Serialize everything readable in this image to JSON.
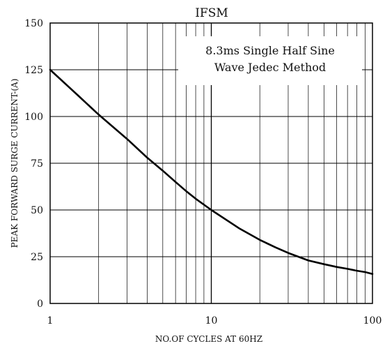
{
  "chart_data": {
    "type": "line",
    "title": "IFSM",
    "xlabel": "NO.OF CYCLES AT 60HZ",
    "ylabel": "PEAK FORWARD SURGE CURRENT-(A)",
    "x_scale": "log",
    "xlim": [
      1,
      100
    ],
    "ylim": [
      0,
      150
    ],
    "x_ticks": [
      1,
      10,
      100
    ],
    "x_tick_labels": [
      "1",
      "10",
      "100"
    ],
    "y_ticks": [
      0,
      25,
      50,
      75,
      100,
      125,
      150
    ],
    "y_tick_labels": [
      "0",
      "25",
      "50",
      "75",
      "100",
      "125",
      "150"
    ],
    "grid": true,
    "annotation": {
      "line1": "8.3ms Single Half Sine",
      "line2": "Wave Jedec Method"
    },
    "series": [
      {
        "x": [
          1,
          1.5,
          2,
          3,
          4,
          5,
          6,
          7,
          8,
          10,
          15,
          20,
          25,
          30,
          40,
          50,
          60,
          70,
          80,
          90,
          100
        ],
        "y": [
          125,
          111,
          101,
          88,
          78,
          71,
          65,
          60,
          56,
          50,
          40,
          34,
          30,
          27,
          23,
          21,
          19.5,
          18.5,
          17.5,
          16.8,
          15.8
        ]
      }
    ]
  }
}
